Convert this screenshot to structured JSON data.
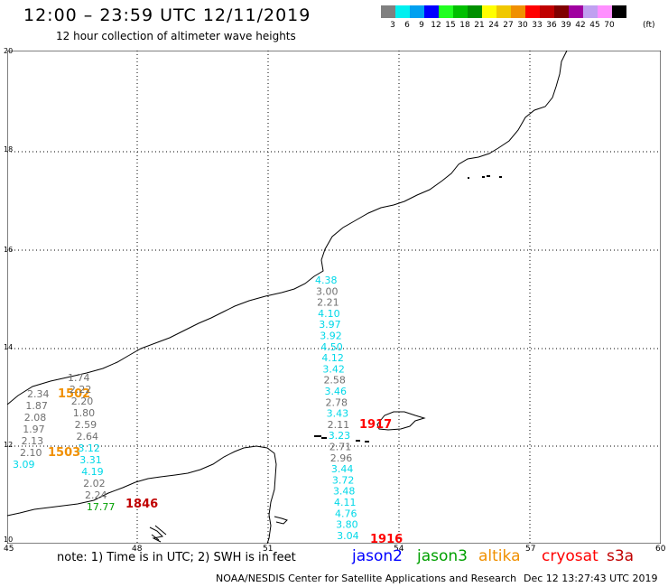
{
  "header": {
    "title": "12:00 – 23:59 UTC 12/11/2019",
    "subtitle": "12 hour collection of altimeter wave heights"
  },
  "scale": {
    "swatches": [
      {
        "color": "#808080",
        "label": "3"
      },
      {
        "color": "#00f0f0",
        "label": "6"
      },
      {
        "color": "#00a0f0",
        "label": "9"
      },
      {
        "color": "#0000ff",
        "label": "12"
      },
      {
        "color": "#20ff20",
        "label": "15"
      },
      {
        "color": "#00c000",
        "label": "18"
      },
      {
        "color": "#009000",
        "label": "21"
      },
      {
        "color": "#ffff00",
        "label": "24"
      },
      {
        "color": "#f0c800",
        "label": "27"
      },
      {
        "color": "#f09000",
        "label": "30"
      },
      {
        "color": "#ff0000",
        "label": "33"
      },
      {
        "color": "#c00000",
        "label": "36"
      },
      {
        "color": "#800000",
        "label": "39"
      },
      {
        "color": "#a000a0",
        "label": "42"
      },
      {
        "color": "#c0a0f0",
        "label": "45"
      },
      {
        "color": "#ff90ff",
        "label": "70"
      },
      {
        "color": "#000000",
        "label": ""
      }
    ],
    "unit": "(ft)"
  },
  "axes": {
    "lat_labels": [
      "20",
      "18",
      "16",
      "14",
      "12",
      "10"
    ],
    "lon_labels": [
      "45",
      "48",
      "51",
      "54",
      "57",
      "60"
    ]
  },
  "tracks": {
    "jason2_color": "#0000ff",
    "jason3_color": "#00a000",
    "altika_color": "#f09000",
    "cryosat_color": "#ff0000",
    "s3a_color": "#c00000",
    "cyan": "#00d8e8",
    "gray": "#707070",
    "green": "#00a000",
    "west_gray": [
      "2.34",
      "1.87",
      "2.08",
      "1.97",
      "2.13",
      "2.10"
    ],
    "west_cyan": [
      "3.09"
    ],
    "west_pass_label": "1503",
    "west_pass_label_top": "1502",
    "mid_values": [
      "1.74",
      "2.22",
      "2.20",
      "1.80",
      "2.59",
      "2.64",
      "3.12",
      "3.31",
      "4.19",
      "2.02",
      "2.24",
      "17.77"
    ],
    "mid_pass_label": "1846",
    "east_values": [
      "4.38",
      "3.00",
      "2.21",
      "4.10",
      "3.97",
      "3.92",
      "4.50",
      "4.12",
      "3.42",
      "2.58",
      "3.46",
      "2.78",
      "3.43",
      "2.11",
      "3.23",
      "2.71",
      "2.96",
      "3.44",
      "3.72",
      "3.48",
      "4.11",
      "4.76",
      "3.80",
      "3.04"
    ],
    "east_pass_label_a": "1917",
    "east_pass_label_b": "1916"
  },
  "footer": {
    "note": "note:  1) Time is in UTC;  2) SWH is in feet",
    "legend": {
      "jason2": "jason2",
      "jason3": "jason3",
      "altika": "altika",
      "cryosat": "cryosat",
      "s3a": "s3a"
    },
    "credit": "NOAA/NESDIS Center for Satellite Applications and Research",
    "timestamp": "Dec 12 13:27:43 UTC 2019"
  }
}
